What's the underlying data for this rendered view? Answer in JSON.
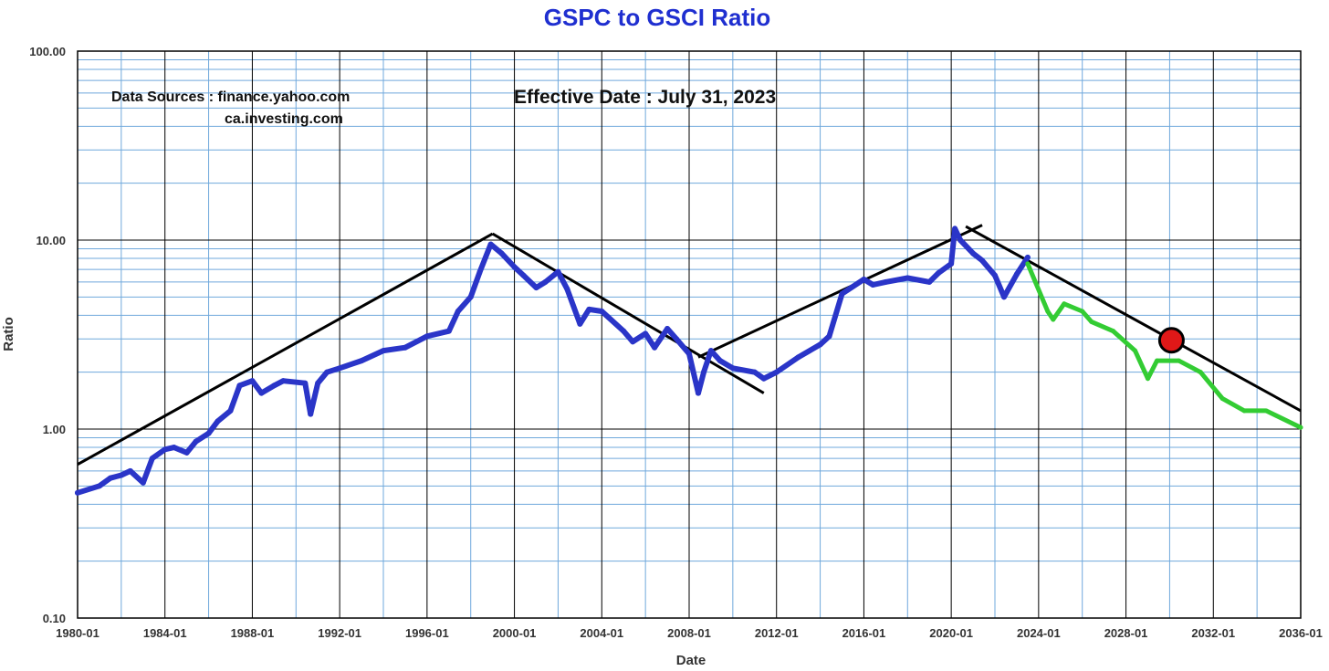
{
  "chart_data": {
    "type": "line",
    "title": "GSPC to GSCI Ratio",
    "xlabel": "Date",
    "ylabel": "Ratio",
    "yscale": "log",
    "ylim": [
      0.1,
      100.0
    ],
    "xlim": [
      "1980-01",
      "2036-01"
    ],
    "x_ticks": [
      "1980-01",
      "1984-01",
      "1988-01",
      "1992-01",
      "1996-01",
      "2000-01",
      "2004-01",
      "2008-01",
      "2012-01",
      "2016-01",
      "2020-01",
      "2024-01",
      "2028-01",
      "2032-01",
      "2036-01"
    ],
    "y_ticks": [
      "100.00",
      "10.00",
      "1.00",
      "0.10"
    ],
    "grid": true,
    "annotations": {
      "sources_label": "Data Sources : finance.yahoo.com",
      "sources_second": "ca.investing.com",
      "effective_date": "Effective Date : July 31, 2023"
    },
    "series": [
      {
        "color": "#2a35c8",
        "points": [
          [
            "1980-01",
            0.46
          ],
          [
            "1981-01",
            0.5
          ],
          [
            "1981-07",
            0.55
          ],
          [
            "1982-01",
            0.57
          ],
          [
            "1982-06",
            0.6
          ],
          [
            "1983-01",
            0.52
          ],
          [
            "1983-06",
            0.7
          ],
          [
            "1984-01",
            0.78
          ],
          [
            "1984-06",
            0.8
          ],
          [
            "1985-01",
            0.75
          ],
          [
            "1985-06",
            0.86
          ],
          [
            "1986-01",
            0.95
          ],
          [
            "1986-06",
            1.1
          ],
          [
            "1987-01",
            1.25
          ],
          [
            "1987-06",
            1.7
          ],
          [
            "1988-01",
            1.8
          ],
          [
            "1988-06",
            1.55
          ],
          [
            "1989-01",
            1.7
          ],
          [
            "1989-06",
            1.8
          ],
          [
            "1990-06",
            1.75
          ],
          [
            "1990-09",
            1.2
          ],
          [
            "1991-01",
            1.75
          ],
          [
            "1991-06",
            2.0
          ],
          [
            "1992-01",
            2.1
          ],
          [
            "1993-01",
            2.3
          ],
          [
            "1994-01",
            2.6
          ],
          [
            "1995-01",
            2.7
          ],
          [
            "1996-01",
            3.1
          ],
          [
            "1997-01",
            3.3
          ],
          [
            "1997-06",
            4.2
          ],
          [
            "1998-01",
            5.0
          ],
          [
            "1998-06",
            6.8
          ],
          [
            "1998-12",
            9.5
          ],
          [
            "1999-06",
            8.5
          ],
          [
            "2000-01",
            7.2
          ],
          [
            "2000-06",
            6.5
          ],
          [
            "2001-01",
            5.6
          ],
          [
            "2001-06",
            6.0
          ],
          [
            "2002-01",
            6.8
          ],
          [
            "2002-06",
            5.5
          ],
          [
            "2003-01",
            3.6
          ],
          [
            "2003-06",
            4.3
          ],
          [
            "2004-01",
            4.2
          ],
          [
            "2005-01",
            3.3
          ],
          [
            "2005-06",
            2.9
          ],
          [
            "2006-01",
            3.2
          ],
          [
            "2006-06",
            2.7
          ],
          [
            "2007-01",
            3.4
          ],
          [
            "2007-06",
            3.0
          ],
          [
            "2008-01",
            2.5
          ],
          [
            "2008-06",
            1.55
          ],
          [
            "2008-09",
            2.0
          ],
          [
            "2009-01",
            2.6
          ],
          [
            "2009-06",
            2.3
          ],
          [
            "2010-01",
            2.1
          ],
          [
            "2011-01",
            2.0
          ],
          [
            "2011-06",
            1.85
          ],
          [
            "2012-01",
            2.0
          ],
          [
            "2013-01",
            2.4
          ],
          [
            "2014-01",
            2.8
          ],
          [
            "2014-06",
            3.1
          ],
          [
            "2015-01",
            5.2
          ],
          [
            "2016-01",
            6.2
          ],
          [
            "2016-06",
            5.8
          ],
          [
            "2017-01",
            6.0
          ],
          [
            "2018-01",
            6.3
          ],
          [
            "2019-01",
            6.0
          ],
          [
            "2019-06",
            6.7
          ],
          [
            "2020-01",
            7.5
          ],
          [
            "2020-03",
            11.5
          ],
          [
            "2020-06",
            10.0
          ],
          [
            "2021-01",
            8.5
          ],
          [
            "2021-06",
            7.8
          ],
          [
            "2022-01",
            6.5
          ],
          [
            "2022-06",
            5.0
          ],
          [
            "2023-01",
            6.6
          ],
          [
            "2023-07",
            8.1
          ]
        ]
      },
      {
        "color": "#33cc33",
        "points": [
          [
            "2023-07",
            7.5
          ],
          [
            "2024-06",
            4.2
          ],
          [
            "2024-09",
            3.8
          ],
          [
            "2025-03",
            4.6
          ],
          [
            "2026-01",
            4.2
          ],
          [
            "2026-06",
            3.7
          ],
          [
            "2027-06",
            3.3
          ],
          [
            "2028-06",
            2.6
          ],
          [
            "2029-01",
            1.85
          ],
          [
            "2029-06",
            2.3
          ],
          [
            "2030-06",
            2.3
          ],
          [
            "2031-06",
            2.0
          ],
          [
            "2032-06",
            1.45
          ],
          [
            "2033-06",
            1.25
          ],
          [
            "2034-06",
            1.25
          ],
          [
            "2036-01",
            1.02
          ]
        ]
      }
    ],
    "trendlines": [
      {
        "color": "#000000",
        "from": [
          "1980-01",
          0.65
        ],
        "to": [
          "1999-01",
          10.8
        ]
      },
      {
        "color": "#000000",
        "from": [
          "1999-01",
          10.8
        ],
        "to": [
          "2011-06",
          1.55
        ]
      },
      {
        "color": "#000000",
        "from": [
          "2008-06",
          2.4
        ],
        "to": [
          "2021-06",
          12.0
        ]
      },
      {
        "color": "#000000",
        "from": [
          "2020-09",
          11.8
        ],
        "to": [
          "2036-01",
          1.25
        ]
      }
    ],
    "marker": {
      "x": "2030-02",
      "y": 2.95,
      "color": "#e01818"
    }
  }
}
